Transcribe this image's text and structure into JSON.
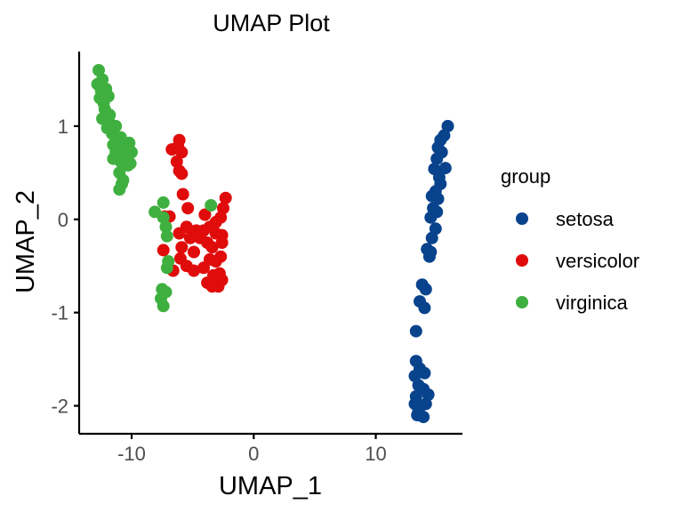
{
  "chart_data": {
    "type": "scatter",
    "title": "UMAP Plot",
    "xlabel": "UMAP_1",
    "ylabel": "UMAP_2",
    "xlim": [
      -14.3,
      17.1
    ],
    "ylim": [
      -2.3,
      1.8
    ],
    "x_ticks": [
      -10,
      0,
      10
    ],
    "x_tick_labels": [
      "-10",
      "0",
      "10"
    ],
    "y_ticks": [
      -2,
      -1,
      0,
      1
    ],
    "y_tick_labels": [
      "-2",
      "-1",
      "0",
      "1"
    ],
    "grid": false,
    "legend": {
      "title": "group",
      "position": "right"
    },
    "series": [
      {
        "name": "setosa",
        "color": "#08438c",
        "points": [
          [
            15.9,
            1.0
          ],
          [
            15.6,
            0.9
          ],
          [
            15.3,
            0.85
          ],
          [
            15.1,
            0.77
          ],
          [
            15.4,
            0.72
          ],
          [
            15.0,
            0.65
          ],
          [
            15.7,
            0.55
          ],
          [
            15.2,
            0.45
          ],
          [
            14.8,
            0.54
          ],
          [
            15.3,
            0.38
          ],
          [
            14.9,
            0.3
          ],
          [
            14.6,
            0.25
          ],
          [
            15.1,
            0.22
          ],
          [
            14.7,
            0.12
          ],
          [
            15.0,
            0.08
          ],
          [
            14.5,
            0.02
          ],
          [
            14.9,
            -0.1
          ],
          [
            14.6,
            -0.2
          ],
          [
            14.2,
            -0.32
          ],
          [
            14.5,
            -0.35
          ],
          [
            14.4,
            -0.4
          ],
          [
            13.8,
            -0.7
          ],
          [
            14.1,
            -0.75
          ],
          [
            13.6,
            -0.88
          ],
          [
            14.0,
            -0.95
          ],
          [
            13.3,
            -1.2
          ],
          [
            13.3,
            -1.52
          ],
          [
            13.6,
            -1.6
          ],
          [
            13.2,
            -1.68
          ],
          [
            14.0,
            -1.65
          ],
          [
            13.5,
            -1.78
          ],
          [
            13.9,
            -1.82
          ],
          [
            13.3,
            -1.9
          ],
          [
            14.3,
            -1.88
          ],
          [
            13.2,
            -1.98
          ],
          [
            13.7,
            -2.0
          ],
          [
            14.1,
            -1.98
          ],
          [
            13.5,
            -2.05
          ],
          [
            13.4,
            -2.1
          ],
          [
            13.9,
            -2.12
          ]
        ]
      },
      {
        "name": "versicolor",
        "color": "#e00b0b",
        "points": [
          [
            -6.1,
            0.85
          ],
          [
            -6.2,
            0.78
          ],
          [
            -5.9,
            0.72
          ],
          [
            -6.7,
            0.75
          ],
          [
            -6.3,
            0.62
          ],
          [
            -6.1,
            0.52
          ],
          [
            -5.9,
            0.49
          ],
          [
            -5.8,
            0.27
          ],
          [
            -2.3,
            0.23
          ],
          [
            -2.5,
            0.12
          ],
          [
            -5.4,
            0.12
          ],
          [
            -2.7,
            0.02
          ],
          [
            -4.0,
            0.05
          ],
          [
            -6.9,
            0.03
          ],
          [
            -7.3,
            0.03
          ],
          [
            -3.1,
            -0.03
          ],
          [
            -3.6,
            -0.08
          ],
          [
            -5.5,
            -0.08
          ],
          [
            -6.1,
            -0.15
          ],
          [
            -4.7,
            -0.12
          ],
          [
            -4.1,
            -0.12
          ],
          [
            -3.1,
            -0.15
          ],
          [
            -2.6,
            -0.17
          ],
          [
            -4.4,
            -0.2
          ],
          [
            -5.2,
            -0.2
          ],
          [
            -2.6,
            -0.25
          ],
          [
            -3.8,
            -0.25
          ],
          [
            -5.9,
            -0.3
          ],
          [
            -3.4,
            -0.3
          ],
          [
            -7.4,
            -0.33
          ],
          [
            -4.9,
            -0.35
          ],
          [
            -2.7,
            -0.4
          ],
          [
            -6.0,
            -0.42
          ],
          [
            -3.6,
            -0.43
          ],
          [
            -3.1,
            -0.45
          ],
          [
            -5.5,
            -0.5
          ],
          [
            -4.1,
            -0.52
          ],
          [
            -6.6,
            -0.55
          ],
          [
            -4.9,
            -0.55
          ],
          [
            -2.8,
            -0.58
          ],
          [
            -3.3,
            -0.6
          ],
          [
            -2.6,
            -0.65
          ],
          [
            -3.8,
            -0.68
          ],
          [
            -2.9,
            -0.72
          ],
          [
            -3.4,
            -0.72
          ]
        ]
      },
      {
        "name": "virginica",
        "color": "#3fb03f",
        "points": [
          [
            -12.7,
            1.6
          ],
          [
            -12.4,
            1.5
          ],
          [
            -12.8,
            1.45
          ],
          [
            -12.5,
            1.38
          ],
          [
            -12.1,
            1.4
          ],
          [
            -12.6,
            1.3
          ],
          [
            -12.3,
            1.25
          ],
          [
            -11.9,
            1.32
          ],
          [
            -12.2,
            1.18
          ],
          [
            -11.8,
            1.12
          ],
          [
            -12.4,
            1.08
          ],
          [
            -11.7,
            1.02
          ],
          [
            -12.0,
            0.98
          ],
          [
            -11.3,
            1.0
          ],
          [
            -11.6,
            0.92
          ],
          [
            -10.9,
            0.88
          ],
          [
            -11.5,
            0.8
          ],
          [
            -11.1,
            0.78
          ],
          [
            -10.7,
            0.82
          ],
          [
            -10.2,
            0.82
          ],
          [
            -11.3,
            0.72
          ],
          [
            -10.6,
            0.7
          ],
          [
            -10.0,
            0.72
          ],
          [
            -11.5,
            0.65
          ],
          [
            -10.9,
            0.62
          ],
          [
            -10.4,
            0.6
          ],
          [
            -10.1,
            0.6
          ],
          [
            -11.0,
            0.5
          ],
          [
            -10.3,
            0.58
          ],
          [
            -10.8,
            0.38
          ],
          [
            -11.0,
            0.32
          ],
          [
            -10.7,
            0.42
          ],
          [
            -7.4,
            0.18
          ],
          [
            -3.5,
            0.15
          ],
          [
            -8.1,
            0.08
          ],
          [
            -7.4,
            0.02
          ],
          [
            -7.2,
            -0.08
          ],
          [
            -7.1,
            -0.18
          ],
          [
            -7.0,
            -0.45
          ],
          [
            -7.1,
            -0.52
          ],
          [
            -7.5,
            -0.75
          ],
          [
            -7.2,
            -0.78
          ],
          [
            -7.6,
            -0.85
          ],
          [
            -7.4,
            -0.93
          ]
        ]
      }
    ]
  }
}
